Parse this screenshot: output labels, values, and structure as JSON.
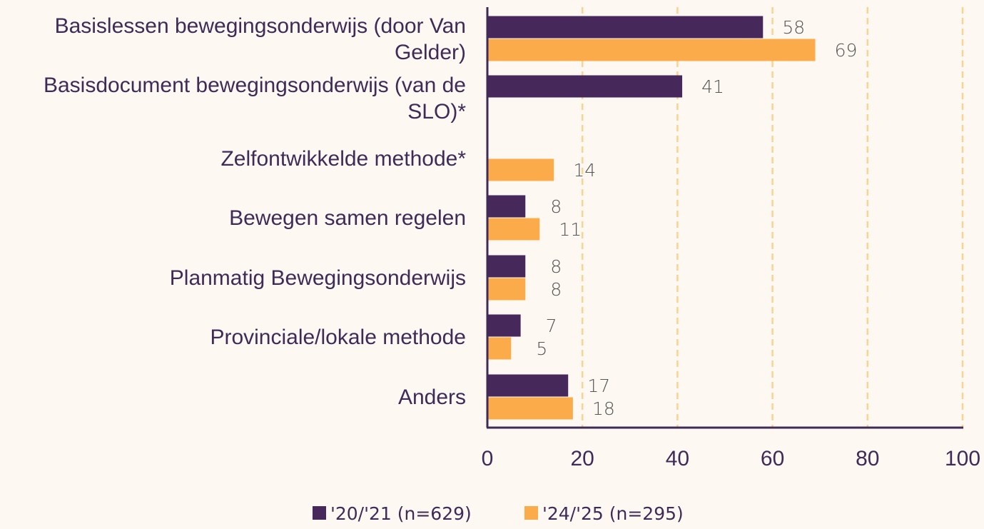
{
  "chart_data": {
    "type": "bar",
    "orientation": "horizontal",
    "categories": [
      [
        "Basislessen bewegingsonderwijs (door Van",
        "Gelder)"
      ],
      [
        "Basisdocument bewegingsonderwijs (van de",
        "SLO)*"
      ],
      [
        "Zelfontwikkelde methode*"
      ],
      [
        "Bewegen samen regelen"
      ],
      [
        "Planmatig Bewegingsonderwijs"
      ],
      [
        "Provinciale/lokale methode"
      ],
      [
        "Anders"
      ]
    ],
    "series": [
      {
        "name": "'20/'21 (n=629)",
        "color": "#46295a",
        "values": [
          58,
          41,
          null,
          8,
          8,
          7,
          17
        ]
      },
      {
        "name": "'24/'25 (n=295)",
        "color": "#fcab4a",
        "values": [
          69,
          null,
          14,
          11,
          8,
          5,
          18
        ]
      }
    ],
    "xlim": [
      0,
      100
    ],
    "xticks": [
      0,
      20,
      40,
      60,
      80,
      100
    ],
    "grid": {
      "vertical": true,
      "style": "dashed",
      "color": "#f9d38f"
    },
    "axis_color": "#3f2b57",
    "legend": "bottom-center",
    "title": "",
    "xlabel": "",
    "ylabel": ""
  }
}
